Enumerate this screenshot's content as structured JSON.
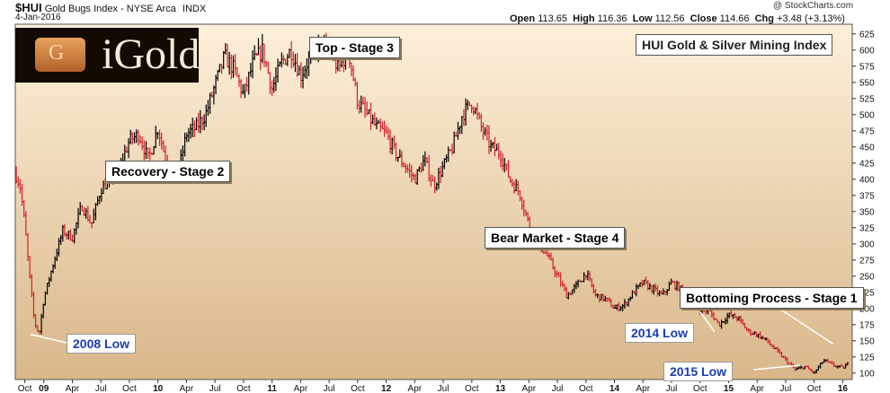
{
  "header": {
    "symbol": "$HUI",
    "name": "Gold Bugs Index - NYSE Arca",
    "exchange": "INDX",
    "date": "4-Jan-2016",
    "copyright": "@ StockCharts.com",
    "open_label": "Open",
    "open": "113.65",
    "high_label": "High",
    "high": "116.36",
    "low_label": "Low",
    "low": "112.56",
    "close_label": "Close",
    "close": "114.66",
    "chg_label": "Chg",
    "chg": "+3.48 (+3.13%)"
  },
  "logo": {
    "text": "iGold",
    "mark": "G"
  },
  "index_title": "HUI Gold & Silver Mining Index",
  "annotations": {
    "top": "Top - Stage 3",
    "recovery": "Recovery - Stage 2",
    "bear": "Bear Market - Stage 4",
    "bottoming": "Bottoming Process - Stage 1"
  },
  "lows": {
    "low2008": "2008 Low",
    "low2014": "2014 Low",
    "low2015": "2015 Low"
  },
  "colors": {
    "background_top": "#fdf0d9",
    "background_bottom": "#d9b78a",
    "up_bar": "#000000",
    "down_bar": "#d41f2a",
    "low_text": "#1a3cb0"
  },
  "chart_data": {
    "type": "line",
    "style": "ohlc-bars",
    "x_unit": "months from Sep 2008",
    "ylim": [
      90,
      640
    ],
    "ytick_values": [
      100,
      125,
      150,
      175,
      200,
      225,
      250,
      275,
      300,
      325,
      350,
      375,
      400,
      425,
      450,
      475,
      500,
      525,
      550,
      575,
      600,
      625
    ],
    "ytick_labels": [
      "100",
      "125",
      "150",
      "175",
      "200",
      "225",
      "250",
      "275",
      "300",
      "325",
      "350",
      "375",
      "400",
      "425",
      "450",
      "475",
      "500",
      "525",
      "550",
      "575",
      "600",
      "625"
    ],
    "xtick_labels": [
      "Oct",
      "09",
      "Apr",
      "Jul",
      "Oct",
      "10",
      "Apr",
      "Jul",
      "Oct",
      "11",
      "Apr",
      "Jul",
      "Oct",
      "12",
      "Apr",
      "Jul",
      "Oct",
      "13",
      "Apr",
      "Jul",
      "Oct",
      "14",
      "Apr",
      "Jul",
      "Oct",
      "15",
      "Apr",
      "Jul",
      "Oct",
      "16"
    ],
    "xtick_months": [
      1,
      3,
      6,
      9,
      12,
      15,
      18,
      21,
      24,
      27,
      30,
      33,
      36,
      39,
      42,
      45,
      48,
      51,
      54,
      57,
      60,
      63,
      66,
      69,
      72,
      75,
      78,
      81,
      84,
      87
    ],
    "x_range_months": [
      0,
      88
    ],
    "grid": false,
    "series": [
      {
        "x": [
          0,
          0.5,
          1,
          1.5,
          2,
          2.5,
          3,
          4,
          5,
          6,
          7,
          8,
          9,
          10,
          11,
          12,
          13,
          14,
          15,
          16,
          17,
          18,
          19,
          20,
          21,
          22,
          23,
          24,
          25,
          26,
          27,
          28,
          29,
          30,
          31,
          32,
          33,
          34,
          35,
          36,
          37,
          38,
          39,
          40,
          41,
          42,
          43,
          44,
          45,
          46,
          47,
          48,
          49,
          50,
          51,
          52,
          53,
          54,
          55,
          56,
          57,
          58,
          59,
          60,
          61,
          62,
          63,
          64,
          65,
          66,
          67,
          68,
          69,
          70,
          71,
          72,
          73,
          74,
          75,
          76,
          77,
          78,
          79,
          80,
          81,
          82,
          83,
          84,
          85,
          86,
          87,
          87.6
        ],
        "values": [
          410,
          390,
          330,
          250,
          180,
          160,
          215,
          270,
          320,
          310,
          360,
          330,
          385,
          400,
          420,
          460,
          470,
          430,
          480,
          420,
          400,
          470,
          480,
          500,
          545,
          590,
          570,
          530,
          580,
          600,
          540,
          580,
          600,
          560,
          590,
          610,
          600,
          570,
          600,
          520,
          500,
          480,
          470,
          440,
          420,
          400,
          430,
          390,
          420,
          450,
          500,
          520,
          480,
          450,
          440,
          400,
          380,
          330,
          300,
          280,
          250,
          220,
          235,
          255,
          220,
          215,
          200,
          205,
          225,
          240,
          230,
          220,
          240,
          230,
          215,
          200,
          195,
          175,
          190,
          185,
          165,
          160,
          150,
          135,
          120,
          105,
          110,
          100,
          120,
          112,
          108,
          114.66
        ]
      }
    ]
  }
}
